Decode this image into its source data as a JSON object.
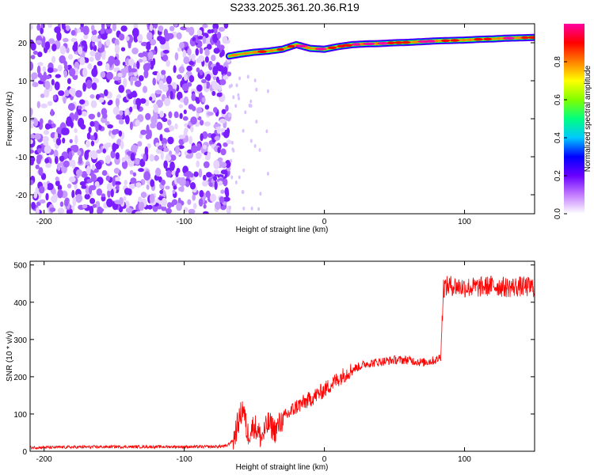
{
  "title": "S233.2025.361.20.36.R19",
  "spectrogram": {
    "xlabel": "Height of straight line (km)",
    "ylabel": "Frequency (Hz)",
    "xlim": [
      -210,
      150
    ],
    "ylim": [
      -25,
      25
    ],
    "xticks": [
      -200,
      -100,
      0,
      100
    ],
    "yticks": [
      20,
      10,
      0,
      -10,
      -20
    ],
    "colorbar": {
      "label": "Normalized spectral amplitude",
      "range": [
        0,
        1
      ],
      "ticks": [
        "0.0",
        "0.2",
        "0.4",
        "0.6",
        "0.8"
      ],
      "colors": [
        "#ffffff",
        "#c27bff",
        "#6a00ff",
        "#0000ff",
        "#00c8ff",
        "#00ff80",
        "#80ff00",
        "#ffff00",
        "#ff8000",
        "#ff0000",
        "#ff00a0"
      ]
    }
  },
  "chart_data": [
    {
      "type": "heatmap",
      "xlabel": "Height of straight line (km)",
      "ylabel": "Frequency (Hz)",
      "xlim": [
        -210,
        150
      ],
      "ylim": [
        -25,
        25
      ],
      "noise_region_x": [
        -210,
        -68
      ],
      "signal_ridge": {
        "x": [
          -68,
          -60,
          -50,
          -40,
          -30,
          -20,
          -10,
          0,
          10,
          20,
          30,
          40,
          50,
          60,
          70,
          80,
          90,
          100,
          110,
          120,
          130,
          140,
          150
        ],
        "y": [
          16.5,
          17.0,
          17.5,
          17.8,
          18.3,
          19.5,
          18.5,
          18.3,
          19.0,
          19.5,
          19.7,
          19.8,
          20.0,
          20.1,
          20.3,
          20.5,
          20.6,
          20.7,
          20.9,
          21.0,
          21.2,
          21.3,
          21.4
        ],
        "peak_amplitude": 1.0
      }
    },
    {
      "type": "line",
      "xlabel": "Height of straight line (km)",
      "ylabel": "SNR (10 * v/v)",
      "xlim": [
        -210,
        150
      ],
      "ylim": [
        0,
        510
      ],
      "xticks": [
        -200,
        -100,
        0,
        100
      ],
      "yticks": [
        0,
        100,
        200,
        300,
        400,
        500
      ],
      "color": "#ff0000",
      "x": [
        -210,
        -150,
        -100,
        -80,
        -70,
        -65,
        -62,
        -58,
        -55,
        -50,
        -45,
        -40,
        -35,
        -30,
        -20,
        -10,
        0,
        10,
        20,
        30,
        40,
        50,
        60,
        70,
        80,
        83,
        85,
        90,
        100,
        110,
        120,
        130,
        140,
        150
      ],
      "y": [
        10,
        12,
        12,
        12,
        14,
        30,
        70,
        120,
        45,
        70,
        35,
        75,
        55,
        85,
        120,
        140,
        165,
        195,
        220,
        235,
        240,
        245,
        245,
        238,
        245,
        255,
        440,
        445,
        440,
        440,
        445,
        440,
        442,
        440
      ]
    }
  ]
}
